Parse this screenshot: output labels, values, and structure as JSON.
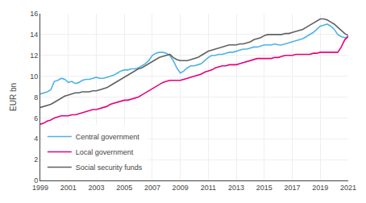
{
  "chart_data": {
    "type": "line",
    "ylabel": "EUR bn",
    "x": [
      1999,
      1999.25,
      1999.5,
      1999.75,
      2000,
      2000.25,
      2000.5,
      2000.75,
      2001,
      2001.25,
      2001.5,
      2001.75,
      2002,
      2002.25,
      2002.5,
      2002.75,
      2003,
      2003.25,
      2003.5,
      2003.75,
      2004,
      2004.25,
      2004.5,
      2004.75,
      2005,
      2005.25,
      2005.5,
      2005.75,
      2006,
      2006.25,
      2006.5,
      2006.75,
      2007,
      2007.25,
      2007.5,
      2007.75,
      2008,
      2008.25,
      2008.5,
      2008.75,
      2009,
      2009.25,
      2009.5,
      2009.75,
      2010,
      2010.25,
      2010.5,
      2010.75,
      2011,
      2011.25,
      2011.5,
      2011.75,
      2012,
      2012.25,
      2012.5,
      2012.75,
      2013,
      2013.25,
      2013.5,
      2013.75,
      2014,
      2014.25,
      2014.5,
      2014.75,
      2015,
      2015.25,
      2015.5,
      2015.75,
      2016,
      2016.25,
      2016.5,
      2016.75,
      2017,
      2017.25,
      2017.5,
      2017.75,
      2018,
      2018.25,
      2018.5,
      2018.75,
      2019,
      2019.25,
      2019.5,
      2019.75,
      2020,
      2020.25,
      2020.5,
      2020.75,
      2021
    ],
    "series": [
      {
        "name": "Central government",
        "color": "#4db3e6",
        "values": [
          8.3,
          8.4,
          8.5,
          8.7,
          9.5,
          9.6,
          9.8,
          9.7,
          9.4,
          9.5,
          9.3,
          9.4,
          9.6,
          9.7,
          9.7,
          9.8,
          9.9,
          9.8,
          9.8,
          9.9,
          10.0,
          10.1,
          10.3,
          10.5,
          10.6,
          10.6,
          10.7,
          10.7,
          10.8,
          11.0,
          11.2,
          11.5,
          12.0,
          12.2,
          12.3,
          12.3,
          12.2,
          12.0,
          11.5,
          10.8,
          10.3,
          10.5,
          10.8,
          11.0,
          11.0,
          11.1,
          11.2,
          11.5,
          11.8,
          12.0,
          12.0,
          12.1,
          12.1,
          12.2,
          12.3,
          12.3,
          12.4,
          12.5,
          12.6,
          12.6,
          12.7,
          12.8,
          12.8,
          12.9,
          13.0,
          13.0,
          13.0,
          13.1,
          13.0,
          13.0,
          13.1,
          13.2,
          13.3,
          13.4,
          13.5,
          13.6,
          13.8,
          14.0,
          14.2,
          14.5,
          14.8,
          14.9,
          15.0,
          14.8,
          14.5,
          14.0,
          13.8,
          13.7,
          13.8
        ]
      },
      {
        "name": "Local government",
        "color": "#e6007e",
        "values": [
          5.4,
          5.5,
          5.7,
          5.8,
          6.0,
          6.1,
          6.2,
          6.2,
          6.2,
          6.3,
          6.3,
          6.4,
          6.5,
          6.6,
          6.7,
          6.8,
          6.8,
          6.9,
          7.0,
          7.1,
          7.3,
          7.4,
          7.5,
          7.6,
          7.7,
          7.7,
          7.8,
          7.9,
          8.0,
          8.2,
          8.4,
          8.6,
          8.8,
          9.0,
          9.2,
          9.4,
          9.5,
          9.6,
          9.6,
          9.6,
          9.6,
          9.7,
          9.8,
          9.9,
          10.0,
          10.1,
          10.2,
          10.4,
          10.5,
          10.6,
          10.8,
          10.9,
          11.0,
          11.0,
          11.1,
          11.1,
          11.1,
          11.2,
          11.3,
          11.4,
          11.5,
          11.6,
          11.7,
          11.7,
          11.7,
          11.7,
          11.7,
          11.8,
          11.8,
          11.9,
          12.0,
          12.0,
          12.0,
          12.1,
          12.1,
          12.1,
          12.1,
          12.1,
          12.2,
          12.2,
          12.3,
          12.3,
          12.3,
          12.3,
          12.3,
          12.3,
          12.8,
          13.5,
          13.8
        ]
      },
      {
        "name": "Social security funds",
        "color": "#606060",
        "values": [
          7.0,
          7.1,
          7.2,
          7.3,
          7.5,
          7.7,
          7.9,
          8.1,
          8.2,
          8.3,
          8.4,
          8.4,
          8.5,
          8.5,
          8.5,
          8.6,
          8.6,
          8.7,
          8.8,
          8.9,
          9.1,
          9.3,
          9.5,
          9.7,
          9.9,
          10.1,
          10.3,
          10.5,
          10.7,
          10.8,
          11.0,
          11.2,
          11.4,
          11.6,
          11.8,
          11.9,
          12.0,
          12.1,
          11.8,
          11.6,
          11.5,
          11.5,
          11.5,
          11.6,
          11.7,
          11.8,
          12.0,
          12.2,
          12.4,
          12.5,
          12.6,
          12.7,
          12.8,
          12.9,
          13.0,
          13.0,
          13.0,
          13.1,
          13.1,
          13.2,
          13.3,
          13.5,
          13.6,
          13.7,
          13.9,
          14.0,
          14.0,
          14.0,
          14.0,
          14.0,
          14.1,
          14.1,
          14.2,
          14.3,
          14.4,
          14.5,
          14.7,
          14.9,
          15.1,
          15.3,
          15.5,
          15.5,
          15.4,
          15.2,
          15.0,
          14.7,
          14.4,
          14.1,
          13.9
        ]
      }
    ],
    "xlim": [
      1999,
      2021
    ],
    "ylim": [
      0,
      16
    ],
    "xticks": [
      1999,
      2001,
      2003,
      2005,
      2007,
      2009,
      2011,
      2013,
      2015,
      2017,
      2019,
      2021
    ],
    "yticks": [
      0,
      2,
      4,
      6,
      8,
      10,
      12,
      14,
      16
    ],
    "grid": true,
    "legend": "lower left"
  }
}
